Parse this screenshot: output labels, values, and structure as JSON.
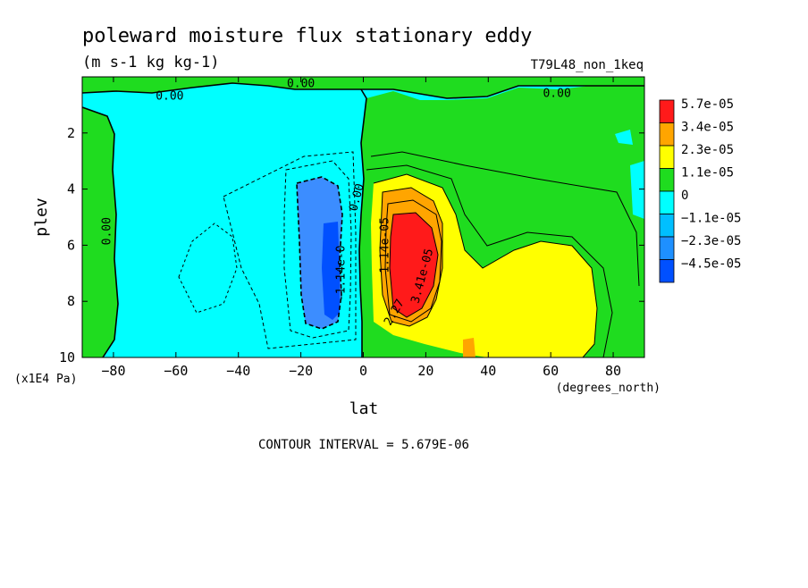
{
  "chart_data": {
    "type": "heatmap",
    "title": "poleward moisture flux stationary eddy",
    "units": "(m s-1 kg kg-1)",
    "run_label": "T79L48_non_1keq",
    "xlabel": "lat",
    "xunits": "(degrees_north)",
    "ylabel": "plev",
    "yunits": "(x1E4 Pa)",
    "xlim": [
      -90,
      90
    ],
    "ylim": [
      0,
      10
    ],
    "y_inverted": true,
    "x_ticks": [
      -80,
      -60,
      -40,
      -20,
      0,
      20,
      40,
      60,
      80
    ],
    "x_tick_labels": [
      "−80",
      "−60",
      "−40",
      "−20",
      "0",
      "20",
      "40",
      "60",
      "80"
    ],
    "y_ticks": [
      2,
      4,
      6,
      8,
      10
    ],
    "y_tick_labels": [
      "2",
      "4",
      "6",
      "8",
      "10"
    ],
    "contour_interval_text": "CONTOUR INTERVAL = 5.679E-06",
    "colorbar": {
      "levels": [
        {
          "label": "5.7e-05",
          "color": "#ff1a1a"
        },
        {
          "label": "3.4e-05",
          "color": "#ffa500"
        },
        {
          "label": "2.3e-05",
          "color": "#ffff00"
        },
        {
          "label": "1.1e-05",
          "color": "#1fdc1f"
        },
        {
          "label": "0",
          "color": "#00ffff"
        },
        {
          "label": "−1.1e-05",
          "color": "#00bfff"
        },
        {
          "label": "−2.3e-05",
          "color": "#1e90ff"
        },
        {
          "label": "−4.5e-05",
          "color": "#0050ff"
        }
      ]
    },
    "contour_labels": [
      {
        "text": "0.00",
        "lat": -62,
        "plev": 0.7
      },
      {
        "text": "0.00",
        "lat": -20,
        "plev": 0.25
      },
      {
        "text": "0.00",
        "lat": 62,
        "plev": 0.6
      },
      {
        "text": "0.00",
        "lat": -82,
        "plev": 5.5,
        "rotate": -90
      },
      {
        "text": "0.00",
        "lat": -2,
        "plev": 4.3,
        "rotate": -75
      },
      {
        "text": "-1.14e-0",
        "lat": -7,
        "plev": 7.0,
        "rotate": -90
      },
      {
        "text": "1.14e-05",
        "lat": 7,
        "plev": 6.0,
        "rotate": -90
      },
      {
        "text": "3.41e-05",
        "lat": 19,
        "plev": 7.1,
        "rotate": -75
      },
      {
        "text": "2.27",
        "lat": 10,
        "plev": 8.4,
        "rotate": -60
      }
    ]
  }
}
